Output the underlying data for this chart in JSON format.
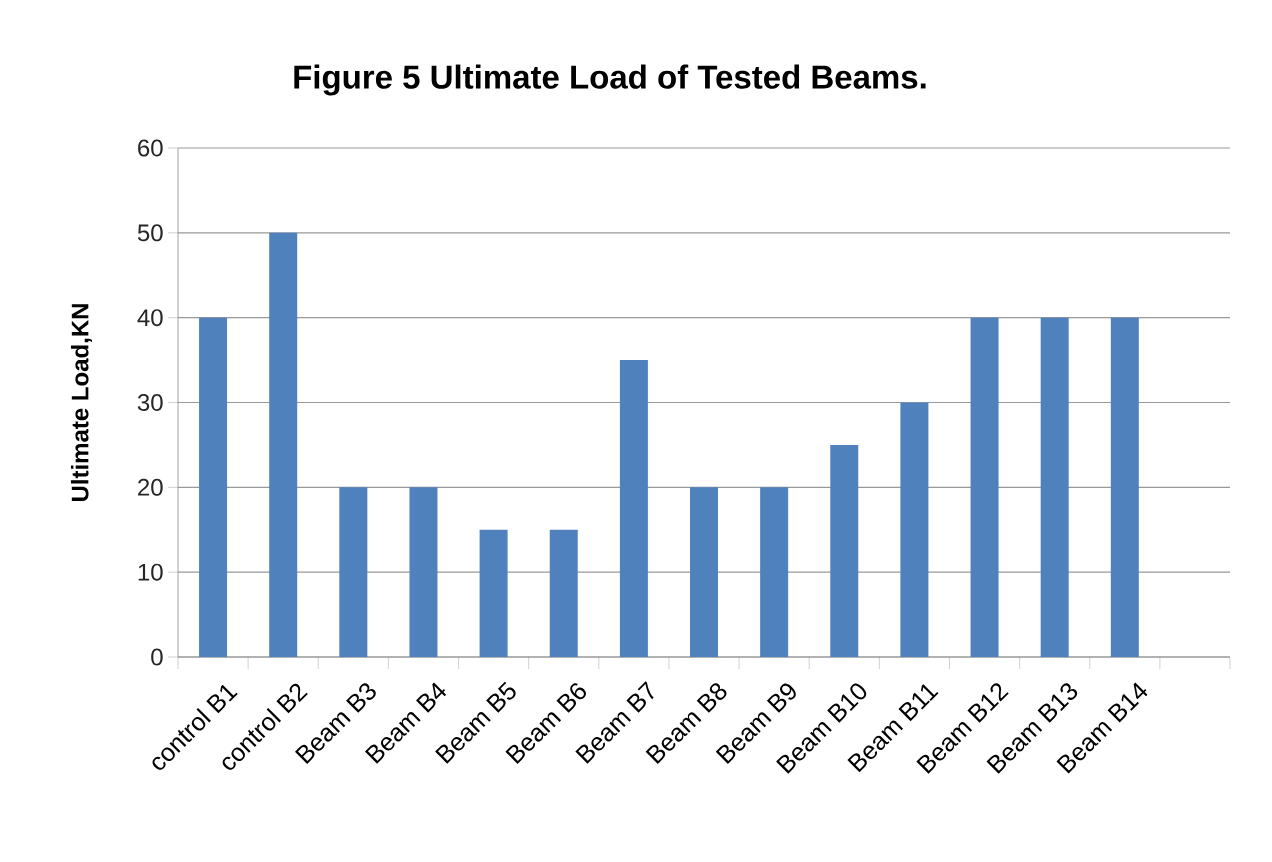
{
  "chart_data": {
    "type": "bar",
    "title": "Figure 5 Ultimate Load of Tested Beams.",
    "ylabel": "Ultimate Load,KN",
    "categories": [
      "control B1",
      "control B2",
      "Beam B3",
      "Beam B4",
      "Beam B5",
      "Beam B6",
      "Beam B7",
      "Beam B8",
      "Beam B9",
      "Beam B10",
      "Beam B11",
      "Beam B12",
      "Beam B13",
      "Beam B14",
      null
    ],
    "values": [
      40,
      50,
      20,
      20,
      15,
      15,
      35,
      20,
      20,
      25,
      30,
      40,
      40,
      40,
      null
    ],
    "color": "#4f81bd",
    "ylim": [
      0,
      60
    ],
    "yticks": [
      0,
      10,
      20,
      30,
      40,
      50,
      60
    ],
    "grid": "y"
  }
}
